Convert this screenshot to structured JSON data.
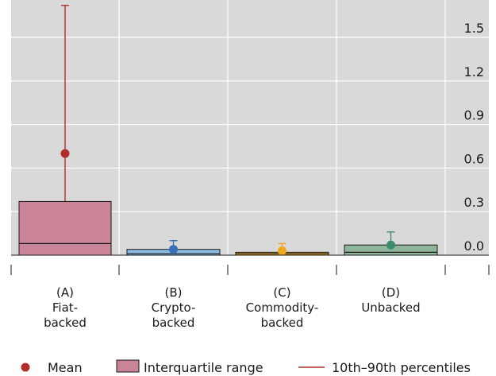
{
  "chart_data": {
    "type": "box",
    "title": "",
    "xlabel": "",
    "ylabel": "",
    "ylim": [
      -0.05,
      1.72
    ],
    "y_ticks": [
      0.0,
      0.3,
      0.6,
      0.9,
      1.2,
      1.5
    ],
    "y_tick_labels": [
      "0.0",
      "0.3",
      "0.6",
      "0.9",
      "1.2",
      "1.5"
    ],
    "y_axis_position": "right",
    "grid": true,
    "legend_position": "bottom",
    "categories": [
      {
        "id": "A",
        "letter": "(A)",
        "lines": [
          "Fiat-",
          "backed"
        ],
        "color": "#c98597",
        "stroke": "#1a1a1a",
        "mean_color": "#b22c2c",
        "whisker_color": "#b22c2c",
        "p10": -0.01,
        "q1": 0.0,
        "median": 0.08,
        "q3": 0.37,
        "p90": 1.72,
        "mean": 0.7
      },
      {
        "id": "B",
        "letter": "(B)",
        "lines": [
          "Crypto-",
          "backed"
        ],
        "color": "#8db8e2",
        "stroke": "#1a1a1a",
        "mean_color": "#3a70b8",
        "whisker_color": "#3a70b8",
        "p10": 0.0,
        "q1": 0.0,
        "median": 0.01,
        "q3": 0.04,
        "p90": 0.1,
        "mean": 0.04
      },
      {
        "id": "C",
        "letter": "(C)",
        "lines": [
          "Commodity-",
          "backed"
        ],
        "color": "#e9a826",
        "stroke": "#1a1a1a",
        "mean_color": "#f0a81e",
        "whisker_color": "#f0a81e",
        "p10": 0.0,
        "q1": 0.0,
        "median": 0.01,
        "q3": 0.02,
        "p90": 0.08,
        "mean": 0.03
      },
      {
        "id": "D",
        "letter": "(D)",
        "lines": [
          "Unbacked"
        ],
        "color": "#8fb59a",
        "stroke": "#1a1a1a",
        "mean_color": "#3e8a6c",
        "whisker_color": "#3e8a6c",
        "p10": 0.0,
        "q1": 0.0,
        "median": 0.02,
        "q3": 0.07,
        "p90": 0.16,
        "mean": 0.07
      }
    ],
    "legend": {
      "mean": "Mean",
      "iqr": "Interquartile range",
      "percentiles": "10th–90th percentiles",
      "mean_color": "#b22c2c",
      "iqr_color": "#c98597",
      "percentile_color": "#b22c2c"
    },
    "colors": {
      "plot_background": "#d9d9d9",
      "grid": "#ffffff",
      "baseline": "#1a1a1a"
    }
  }
}
